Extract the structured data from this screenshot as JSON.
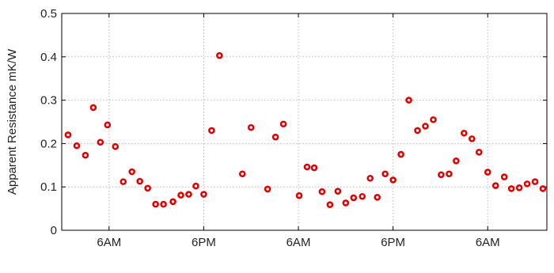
{
  "chart_data": {
    "type": "scatter",
    "title": "",
    "xlabel": "",
    "ylabel": "Apparent Resistance mK/W",
    "x_unit": "hours",
    "xlim": [
      0,
      61.5
    ],
    "ylim": [
      0,
      0.5
    ],
    "y_ticks": [
      0,
      0.1,
      0.2,
      0.3,
      0.4,
      0.5
    ],
    "y_tick_labels": [
      "0",
      "0.1",
      "0.2",
      "0.3",
      "0.4",
      "0.5"
    ],
    "x_ticks": [
      6,
      18,
      30,
      42,
      54
    ],
    "x_tick_labels": [
      "6AM",
      "6PM",
      "6AM",
      "6PM",
      "6AM"
    ],
    "grid": true,
    "marker": "circle",
    "marker_color": "#e00000",
    "series": [
      {
        "x": [
          0.8,
          1.9,
          3.0,
          4.0,
          4.9,
          5.8,
          6.8,
          7.8,
          8.9,
          9.9,
          10.9,
          11.9,
          12.9,
          14.1,
          15.1,
          16.1,
          17.0,
          18.0,
          19.0,
          20.0,
          22.9,
          24.0,
          26.1,
          27.1,
          28.1,
          30.1,
          31.1,
          32.0,
          33.0,
          34.0,
          35.0,
          36.0,
          37.0,
          38.1,
          39.1,
          40.0,
          41.0,
          42.0,
          43.0,
          44.0,
          45.1,
          46.1,
          47.1,
          48.1,
          49.1,
          50.0,
          51.0,
          52.0,
          52.9,
          54.0,
          55.0,
          56.1,
          57.0,
          58.0,
          59.0,
          60.0,
          61.0
        ],
        "y": [
          0.22,
          0.195,
          0.173,
          0.283,
          0.203,
          0.243,
          0.193,
          0.112,
          0.135,
          0.113,
          0.097,
          0.06,
          0.06,
          0.066,
          0.081,
          0.083,
          0.102,
          0.083,
          0.23,
          0.403,
          0.13,
          0.237,
          0.095,
          0.215,
          0.245,
          0.08,
          0.146,
          0.144,
          0.089,
          0.059,
          0.09,
          0.063,
          0.075,
          0.078,
          0.12,
          0.076,
          0.13,
          0.116,
          0.175,
          0.3,
          0.23,
          0.24,
          0.255,
          0.128,
          0.13,
          0.16,
          0.224,
          0.211,
          0.18,
          0.134,
          0.103,
          0.123,
          0.096,
          0.098,
          0.107,
          0.112,
          0.096
        ]
      }
    ]
  }
}
